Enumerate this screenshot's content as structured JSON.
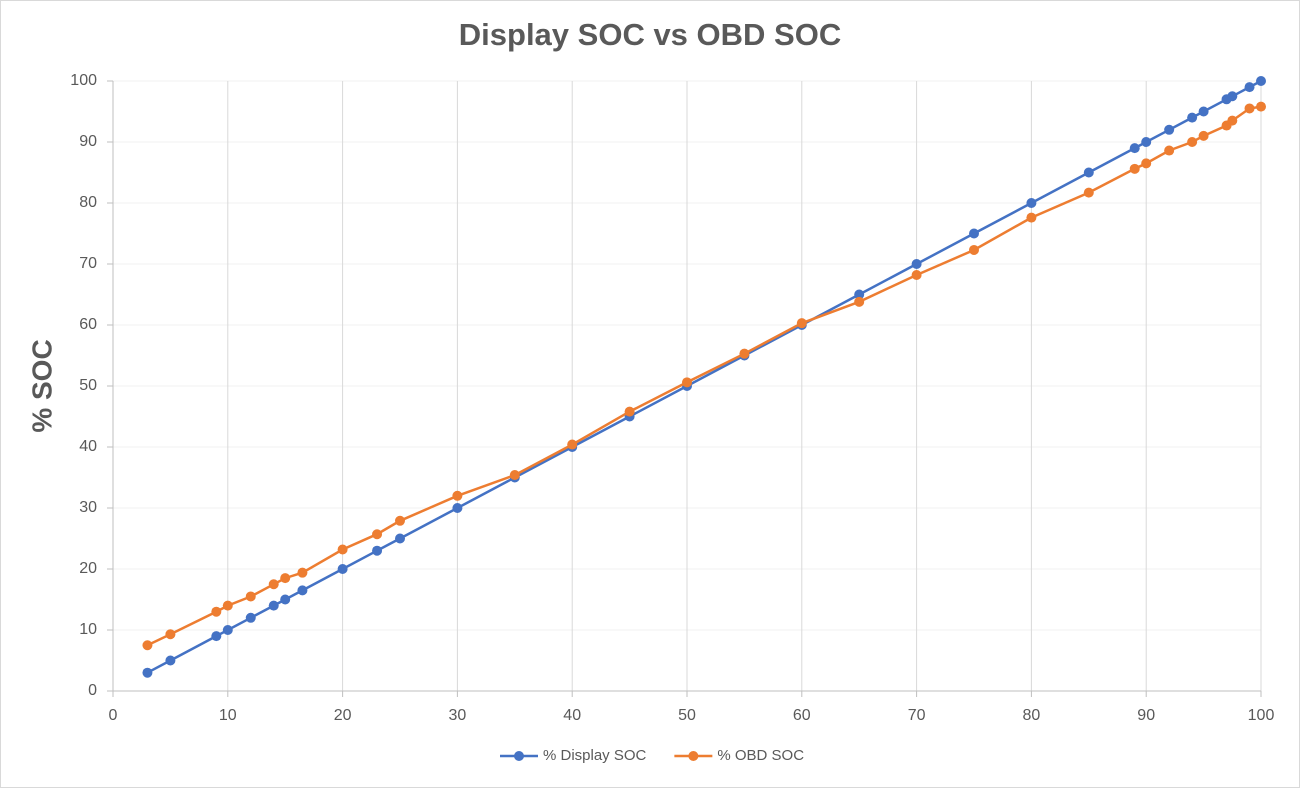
{
  "chart_data": {
    "type": "line",
    "title": "Display SOC vs OBD SOC",
    "y_label": "% SOC",
    "x": [
      3,
      5,
      9,
      10,
      12,
      14,
      15,
      16.5,
      20,
      23,
      25,
      30,
      35,
      40,
      45,
      50,
      55,
      60,
      65,
      70,
      75,
      80,
      85,
      89,
      90,
      92,
      94,
      95,
      97,
      97.5,
      99,
      100
    ],
    "series": [
      {
        "name": "% Display SOC",
        "color": "#4472c4",
        "values": [
          3,
          5,
          9,
          10,
          12,
          14,
          15,
          16.5,
          20,
          23,
          25,
          30,
          35,
          40,
          45,
          50,
          55,
          60,
          65,
          70,
          75,
          80,
          85,
          89,
          90,
          92,
          94,
          95,
          97,
          97.5,
          99,
          100
        ]
      },
      {
        "name": "% OBD SOC",
        "color": "#ed7d31",
        "values": [
          7.5,
          9.3,
          13,
          14,
          15.5,
          17.5,
          18.5,
          19.4,
          23.2,
          25.7,
          27.9,
          32,
          35.4,
          40.4,
          45.8,
          50.6,
          55.3,
          60.3,
          63.8,
          68.2,
          72.3,
          77.6,
          81.7,
          85.6,
          86.5,
          88.6,
          90,
          91,
          92.7,
          93.5,
          95.5,
          95.8
        ]
      }
    ],
    "xlim": [
      0,
      100
    ],
    "xticks": [
      0,
      10,
      20,
      30,
      40,
      50,
      60,
      70,
      80,
      90,
      100
    ],
    "ylim": [
      0,
      100
    ],
    "yticks": [
      0,
      10,
      20,
      30,
      40,
      50,
      60,
      70,
      80,
      90,
      100
    ],
    "grid": true,
    "legend": "bottom"
  }
}
